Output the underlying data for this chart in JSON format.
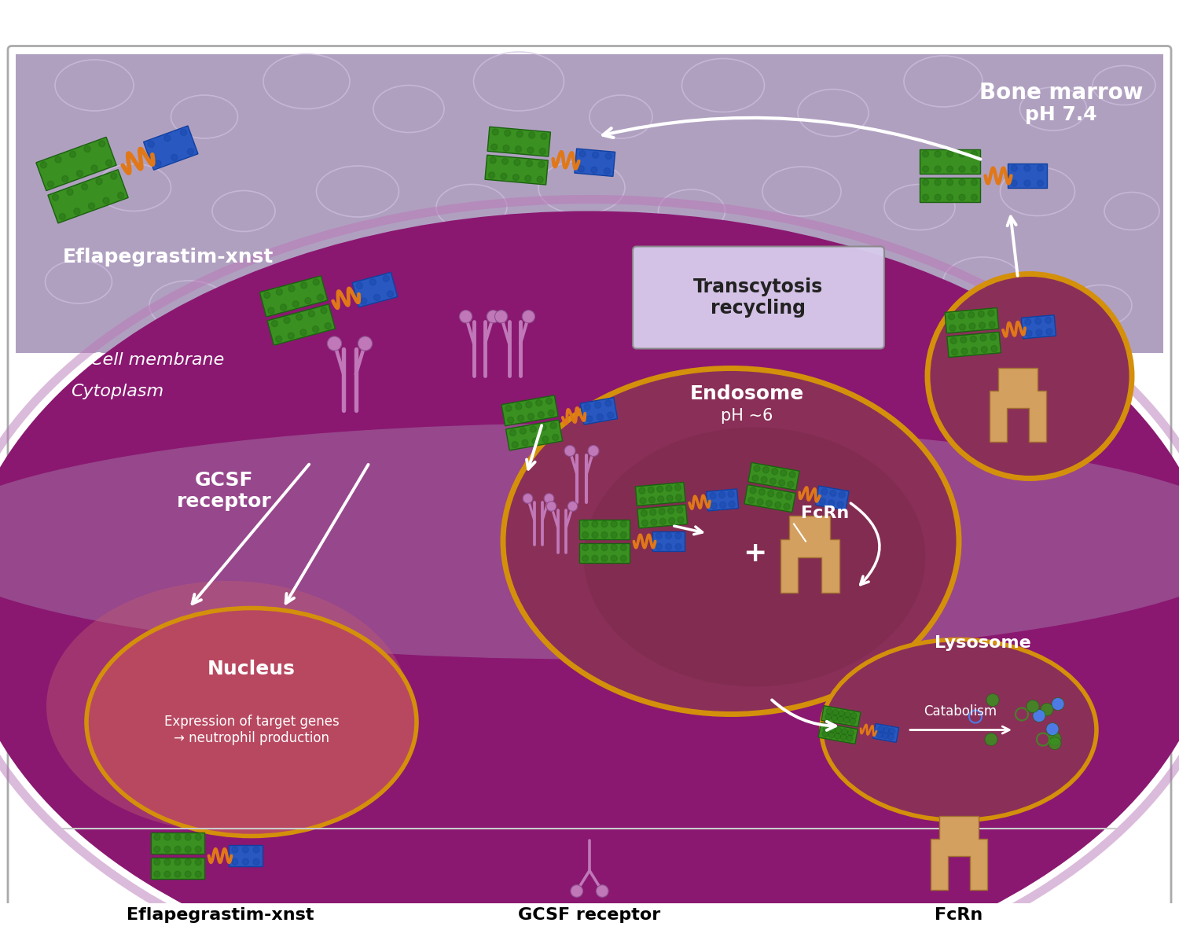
{
  "bg_color": "#ffffff",
  "bone_marrow_color": "#b0a0c0",
  "bone_marrow_color2": "#c8b8d8",
  "cell_body_color": "#8a1870",
  "cell_gradient_top": "#9a3080",
  "membrane_line_color": "#c090c0",
  "endosome_border": "#d4900a",
  "endosome_fill": "#9a3a60",
  "endosome_gradient": "#7a2a50",
  "nucleus_border": "#d4900a",
  "nucleus_fill": "#c05070",
  "lysosome_border": "#d4900a",
  "lysosome_fill": "#9a3a60",
  "transcytosis_box_fill": "#d8c8e8",
  "transcytosis_box_border": "#888888",
  "green_drug": "#3a9020",
  "green_drug_dark": "#1a6010",
  "green_drug_light": "#5ab030",
  "orange_linker": "#e07818",
  "blue_fc": "#2858c0",
  "blue_fc_dark": "#1040a0",
  "fcrn_color": "#d4a060",
  "fcrn_dark": "#a07030",
  "receptor_color": "#c078b8",
  "receptor_dark": "#905090",
  "arrow_color": "#ffffff",
  "label_bone_marrow": "Bone marrow",
  "label_ph74": "pH 7.4",
  "label_cell_membrane": "Cell membrane",
  "label_cytoplasm": "Cytoplasm",
  "label_eflapegrastim": "Eflapegrastim-xnst",
  "label_gcsf": "GCSF\nreceptor",
  "label_transcytosis": "Transcytosis\nrecycling",
  "label_endosome": "Endosome",
  "label_endosome_ph": "pH ~6",
  "label_fcrn": "FcRn",
  "label_lysosome": "Lysosome",
  "label_catabolism": "Catabolism",
  "label_nucleus": "Nucleus",
  "label_nucleus_sub": "Expression of target genes\n→ neutrophil production",
  "label_plus": "+",
  "legend_eflapegrastim": "Eflapegrastim-xnst",
  "legend_gcsf": "GCSF receptor",
  "legend_fcrn": "FcRn",
  "figsize": [
    15.0,
    11.97
  ],
  "dpi": 100
}
